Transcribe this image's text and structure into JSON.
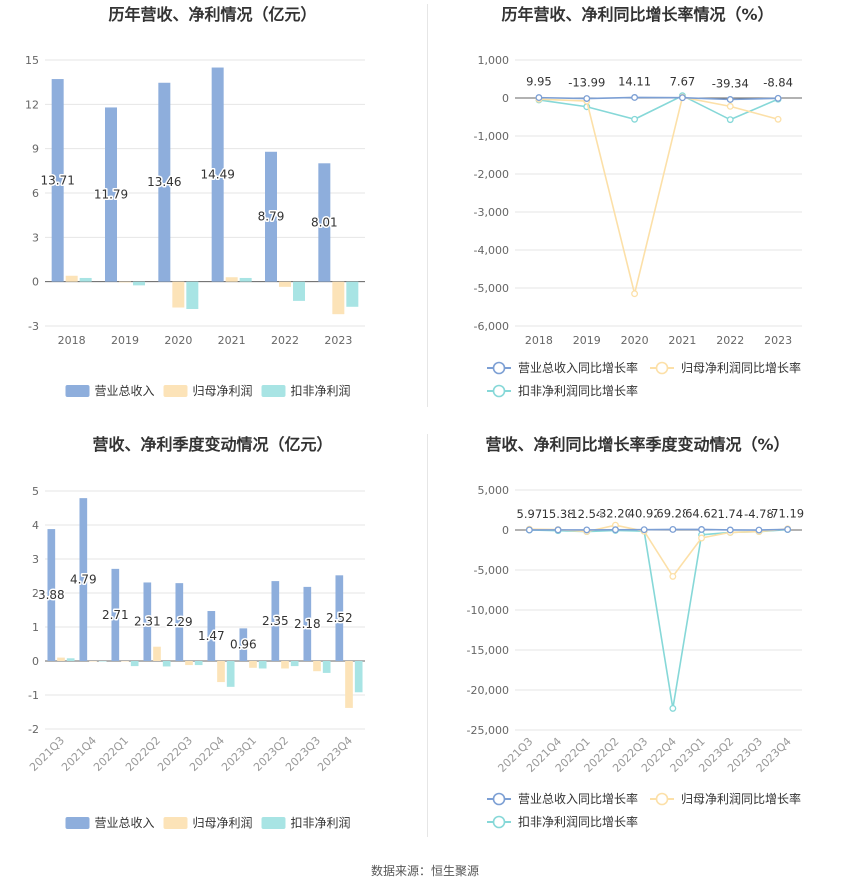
{
  "charts": [
    {
      "type": "bar",
      "title": "历年营收、净利情况（亿元）",
      "categories": [
        "2018",
        "2019",
        "2020",
        "2021",
        "2022",
        "2023"
      ],
      "ylim": [
        -3,
        15
      ],
      "yticks": [
        -3,
        0,
        3,
        6,
        9,
        12,
        15
      ],
      "series": [
        {
          "name": "营业总收入",
          "color": "#8eaedc",
          "values": [
            13.71,
            11.79,
            13.46,
            14.49,
            8.79,
            8.01
          ],
          "labels": [
            "13.71",
            "11.79",
            "13.46",
            "14.49",
            "8.79",
            "8.01"
          ]
        },
        {
          "name": "归母净利润",
          "color": "#fce3b8",
          "values": [
            0.4,
            -0.05,
            -1.75,
            0.3,
            -0.35,
            -2.2
          ]
        },
        {
          "name": "扣非净利润",
          "color": "#a8e4e4",
          "values": [
            0.25,
            -0.25,
            -1.85,
            0.25,
            -1.3,
            -1.7
          ]
        }
      ]
    },
    {
      "type": "line",
      "title": "历年营收、净利同比增长率情况（%）",
      "categories": [
        "2018",
        "2019",
        "2020",
        "2021",
        "2022",
        "2023"
      ],
      "ylim": [
        -6000,
        1000
      ],
      "yticks": [
        -6000,
        -5000,
        -4000,
        -3000,
        -2000,
        -1000,
        0,
        1000
      ],
      "ytick_labels": [
        "-6,000",
        "-5,000",
        "-4,000",
        "-3,000",
        "-2,000",
        "-1,000",
        "0",
        "1,000"
      ],
      "series": [
        {
          "name": "营业总收入同比增长率",
          "color": "#7c9fd4",
          "values": [
            9.95,
            -13.99,
            14.11,
            7.67,
            -39.34,
            -8.84
          ],
          "labels": [
            "9.95",
            "-13.99",
            "14.11",
            "7.67",
            "-39.34",
            "-8.84"
          ]
        },
        {
          "name": "归母净利润同比增长率",
          "color": "#fce0a8",
          "values": [
            -30,
            -80,
            -5150,
            20,
            -220,
            -560
          ]
        },
        {
          "name": "扣非净利润同比增长率",
          "color": "#86d8d8",
          "values": [
            -50,
            -230,
            -560,
            60,
            -570,
            -30
          ]
        }
      ]
    },
    {
      "type": "bar",
      "title": "营收、净利季度变动情况（亿元）",
      "categories": [
        "2021Q3",
        "2021Q4",
        "2022Q1",
        "2022Q2",
        "2022Q3",
        "2022Q4",
        "2023Q1",
        "2023Q2",
        "2023Q3",
        "2023Q4"
      ],
      "ylim": [
        -2,
        5
      ],
      "yticks": [
        -2,
        -1,
        0,
        1,
        2,
        3,
        4,
        5
      ],
      "series": [
        {
          "name": "营业总收入",
          "color": "#8eaedc",
          "values": [
            3.88,
            4.79,
            2.71,
            2.31,
            2.29,
            1.47,
            0.96,
            2.35,
            2.18,
            2.52
          ],
          "labels": [
            "3.88",
            "4.79",
            "2.71",
            "2.31",
            "2.29",
            "1.47",
            "0.96",
            "2.35",
            "2.18",
            "2.52"
          ]
        },
        {
          "name": "归母净利润",
          "color": "#fce3b8",
          "values": [
            0.1,
            0.0,
            0.0,
            0.42,
            -0.12,
            -0.62,
            -0.2,
            -0.22,
            -0.3,
            -1.38
          ]
        },
        {
          "name": "扣非净利润",
          "color": "#a8e4e4",
          "values": [
            0.08,
            0.0,
            -0.15,
            -0.16,
            -0.12,
            -0.76,
            -0.22,
            -0.15,
            -0.35,
            -0.92
          ]
        }
      ]
    },
    {
      "type": "line",
      "title": "营收、净利同比增长率季度变动情况（%）",
      "categories": [
        "2021Q3",
        "2021Q4",
        "2022Q1",
        "2022Q2",
        "2022Q3",
        "2022Q4",
        "2023Q1",
        "2023Q2",
        "2023Q3",
        "2023Q4"
      ],
      "ylim": [
        -25000,
        5000
      ],
      "yticks": [
        -25000,
        -20000,
        -15000,
        -10000,
        -5000,
        0,
        5000
      ],
      "ytick_labels": [
        "-25,000",
        "-20,000",
        "-15,000",
        "-10,000",
        "-5,000",
        "0",
        "5,000"
      ],
      "series": [
        {
          "name": "营业总收入同比增长率",
          "color": "#7c9fd4",
          "values": [
            5.97,
            15.38,
            12.54,
            32.2,
            40.92,
            69.28,
            64.62,
            1.74,
            -4.78,
            71.19
          ],
          "labels": [
            "5.97",
            "15.38",
            "12.54",
            "32.20",
            "40.92",
            "69.28",
            "64.62",
            "1.74",
            "-4.78",
            "71.19"
          ]
        },
        {
          "name": "归母净利润同比增长率",
          "color": "#fce0a8",
          "values": [
            100,
            50,
            -200,
            600,
            -150,
            -5800,
            -1000,
            -300,
            -200,
            150
          ]
        },
        {
          "name": "扣非净利润同比增长率",
          "color": "#86d8d8",
          "values": [
            0,
            -80,
            -200,
            -50,
            -150,
            -22300,
            -600,
            -300,
            -200,
            50
          ]
        }
      ]
    }
  ],
  "source": "数据来源：恒生聚源"
}
